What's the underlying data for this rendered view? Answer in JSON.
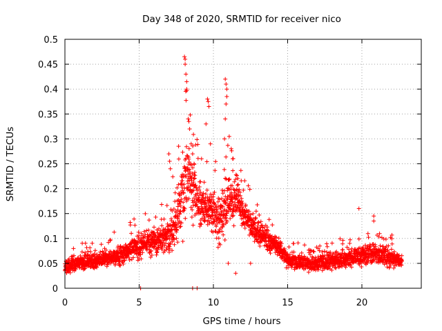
{
  "chart_data": {
    "type": "scatter",
    "title": "Day 348 of 2020, SRMTID for receiver nico",
    "xlabel": "GPS time / hours",
    "ylabel": "SRMTID / TECUs",
    "xlim": [
      0,
      24
    ],
    "ylim": [
      0,
      0.5
    ],
    "xticks": [
      0,
      5,
      10,
      15,
      20
    ],
    "xtick_labels": [
      "0",
      "5",
      "10",
      "15",
      "20"
    ],
    "yticks": [
      0,
      0.05,
      0.1,
      0.15,
      0.2,
      0.25,
      0.3,
      0.35,
      0.4,
      0.45,
      0.5
    ],
    "ytick_labels": [
      "0",
      "0.05",
      "0.1",
      "0.15",
      "0.2",
      "0.25",
      "0.3",
      "0.35",
      "0.4",
      "0.45",
      "0.5"
    ],
    "grid": true,
    "marker": "+",
    "color": "#ff0000",
    "series": [
      {
        "name": "SRMTID",
        "profile_x": [
          0,
          1,
          2,
          3,
          4,
          5,
          6,
          7,
          7.5,
          8,
          8.3,
          8.6,
          9,
          9.5,
          10,
          10.5,
          11,
          11.5,
          12,
          13,
          14,
          14.5,
          15,
          16,
          17,
          18,
          19,
          20,
          21,
          22,
          22.7
        ],
        "profile_y": [
          0.045,
          0.05,
          0.055,
          0.06,
          0.07,
          0.085,
          0.095,
          0.11,
          0.14,
          0.2,
          0.24,
          0.2,
          0.17,
          0.16,
          0.15,
          0.14,
          0.17,
          0.18,
          0.15,
          0.11,
          0.09,
          0.08,
          0.055,
          0.05,
          0.05,
          0.055,
          0.06,
          0.065,
          0.07,
          0.06,
          0.055
        ],
        "profile_spread": [
          0.025,
          0.025,
          0.025,
          0.03,
          0.035,
          0.04,
          0.04,
          0.06,
          0.08,
          0.12,
          0.12,
          0.1,
          0.08,
          0.06,
          0.07,
          0.08,
          0.09,
          0.07,
          0.05,
          0.04,
          0.035,
          0.03,
          0.025,
          0.025,
          0.025,
          0.025,
          0.03,
          0.035,
          0.035,
          0.03,
          0.025
        ],
        "peaks": [
          {
            "x": 8.05,
            "y": 0.465
          },
          {
            "x": 8.1,
            "y": 0.46
          },
          {
            "x": 8.1,
            "y": 0.45
          },
          {
            "x": 8.15,
            "y": 0.43
          },
          {
            "x": 8.2,
            "y": 0.415
          },
          {
            "x": 8.2,
            "y": 0.4
          },
          {
            "x": 8.3,
            "y": 0.34
          },
          {
            "x": 8.35,
            "y": 0.335
          },
          {
            "x": 8.4,
            "y": 0.32
          },
          {
            "x": 8.5,
            "y": 0.29
          },
          {
            "x": 8.6,
            "y": 0.27
          },
          {
            "x": 8.7,
            "y": 0.25
          },
          {
            "x": 9.2,
            "y": 0.26
          },
          {
            "x": 9.5,
            "y": 0.33
          },
          {
            "x": 9.6,
            "y": 0.38
          },
          {
            "x": 9.65,
            "y": 0.375
          },
          {
            "x": 9.7,
            "y": 0.365
          },
          {
            "x": 9.8,
            "y": 0.29
          },
          {
            "x": 10.8,
            "y": 0.42
          },
          {
            "x": 10.85,
            "y": 0.41
          },
          {
            "x": 10.9,
            "y": 0.4
          },
          {
            "x": 10.9,
            "y": 0.385
          },
          {
            "x": 10.85,
            "y": 0.37
          },
          {
            "x": 10.8,
            "y": 0.34
          },
          {
            "x": 10.75,
            "y": 0.3
          },
          {
            "x": 11.2,
            "y": 0.28
          },
          {
            "x": 11.3,
            "y": 0.26
          },
          {
            "x": 7.0,
            "y": 0.27
          },
          {
            "x": 7.05,
            "y": 0.255
          },
          {
            "x": 7.1,
            "y": 0.24
          },
          {
            "x": 20.8,
            "y": 0.145
          },
          {
            "x": 20.8,
            "y": 0.135
          },
          {
            "x": 19.8,
            "y": 0.16
          },
          {
            "x": 11.0,
            "y": 0.05
          },
          {
            "x": 11.5,
            "y": 0.03
          },
          {
            "x": 12.5,
            "y": 0.05
          }
        ],
        "zero_points": [
          {
            "x": 5.1,
            "y": 0.0
          },
          {
            "x": 8.6,
            "y": 0.0
          },
          {
            "x": 8.9,
            "y": 0.0
          }
        ]
      }
    ]
  }
}
